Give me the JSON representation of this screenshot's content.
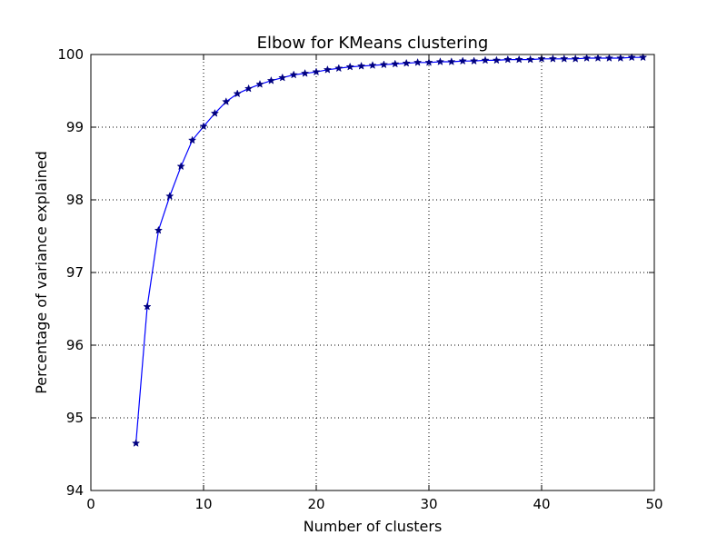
{
  "chart_data": {
    "type": "line",
    "title": "Elbow for KMeans clustering",
    "xlabel": "Number of clusters",
    "ylabel": "Percentage of variance explained",
    "xlim": [
      0,
      50
    ],
    "ylim": [
      94,
      100
    ],
    "xticks": [
      0,
      10,
      20,
      30,
      40,
      50
    ],
    "yticks": [
      94,
      95,
      96,
      97,
      98,
      99,
      100
    ],
    "grid": true,
    "marker": "star",
    "line_color": "#0000ff",
    "marker_color": "#000080",
    "series": [
      {
        "x": [
          4,
          5,
          6,
          7,
          8,
          9,
          10,
          11,
          12,
          13,
          14,
          15,
          16,
          17,
          18,
          19,
          20,
          21,
          22,
          23,
          24,
          25,
          26,
          27,
          28,
          29,
          30,
          31,
          32,
          33,
          34,
          35,
          36,
          37,
          38,
          39,
          40,
          41,
          42,
          43,
          44,
          45,
          46,
          47,
          48,
          49
        ],
        "values": [
          94.65,
          96.53,
          97.58,
          98.05,
          98.46,
          98.82,
          99.01,
          99.19,
          99.35,
          99.46,
          99.53,
          99.59,
          99.64,
          99.68,
          99.72,
          99.74,
          99.76,
          99.79,
          99.81,
          99.83,
          99.84,
          99.85,
          99.86,
          99.87,
          99.88,
          99.89,
          99.89,
          99.9,
          99.9,
          99.91,
          99.91,
          99.92,
          99.92,
          99.93,
          99.93,
          99.93,
          99.94,
          99.94,
          99.94,
          99.94,
          99.95,
          99.95,
          99.95,
          99.95,
          99.96,
          99.96
        ]
      }
    ]
  }
}
